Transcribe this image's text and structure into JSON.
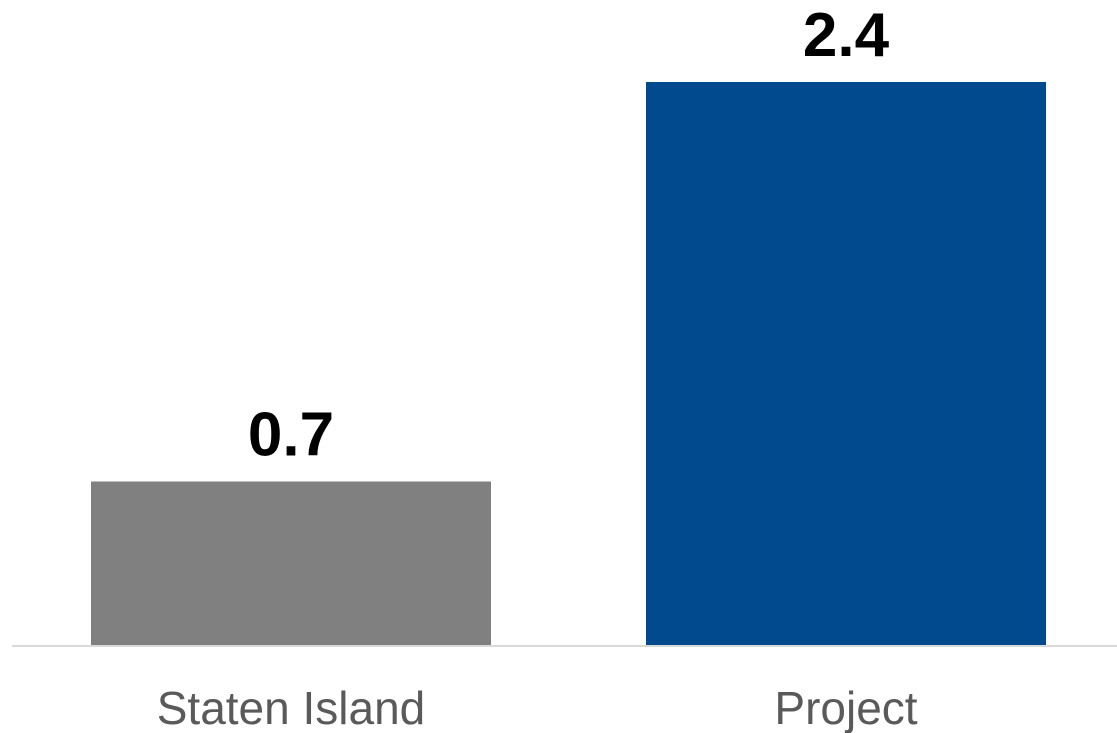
{
  "chart_data": {
    "type": "bar",
    "categories": [
      "Staten Island",
      "Project"
    ],
    "values": [
      0.7,
      2.4
    ],
    "value_labels": [
      "0.7",
      "2.4"
    ],
    "colors": [
      "#808080",
      "#024a8e"
    ],
    "axis_color": "#d9d9d9",
    "title": "",
    "xlabel": "",
    "ylabel": "",
    "ylim": [
      0,
      2.4
    ],
    "grid": false,
    "legend": "none"
  }
}
